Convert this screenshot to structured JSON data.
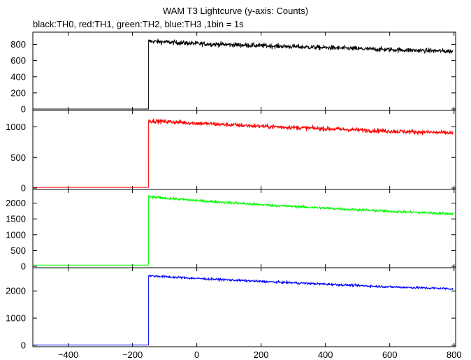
{
  "chart_data": {
    "type": "line",
    "title": "WAM T3 Lightcurve (y-axis: Counts)",
    "subtitle": "black:TH0, red:TH1, green:TH2, blue:TH3 ,1bin = 1s",
    "xlim": [
      -510,
      805
    ],
    "x_ticks": [
      -400,
      -200,
      0,
      200,
      400,
      600,
      800
    ],
    "x_tick_labels": [
      "−400",
      "−200",
      "0",
      "200",
      "400",
      "600",
      "800"
    ],
    "step_time": -150,
    "grid": false,
    "panels": [
      {
        "name": "TH0",
        "color": "#000000",
        "ylim": [
          0,
          900
        ],
        "y_ticks": [
          0,
          200,
          400,
          600,
          800
        ],
        "pre_level": 0,
        "x": [
          -150,
          0,
          200,
          400,
          600,
          800
        ],
        "y": [
          840,
          810,
          785,
          760,
          735,
          715
        ],
        "noise": 28
      },
      {
        "name": "TH1",
        "color": "#ff0000",
        "ylim": [
          0,
          1200
        ],
        "y_ticks": [
          0,
          500,
          1000
        ],
        "pre_level": 10,
        "x": [
          -150,
          0,
          200,
          400,
          600,
          800
        ],
        "y": [
          1100,
          1060,
          1010,
          970,
          930,
          900
        ],
        "noise": 35
      },
      {
        "name": "TH2",
        "color": "#00ff00",
        "ylim": [
          0,
          2300
        ],
        "y_ticks": [
          0,
          500,
          1000,
          1500,
          2000
        ],
        "pre_level": 40,
        "x": [
          -150,
          0,
          200,
          400,
          600,
          800
        ],
        "y": [
          2200,
          2080,
          1950,
          1840,
          1740,
          1660
        ],
        "noise": 45
      },
      {
        "name": "TH3",
        "color": "#0000ff",
        "ylim": [
          0,
          2700
        ],
        "y_ticks": [
          0,
          1000,
          2000
        ],
        "pre_level": 10,
        "x": [
          -150,
          0,
          200,
          400,
          600,
          800
        ],
        "y": [
          2560,
          2460,
          2350,
          2250,
          2150,
          2080
        ],
        "noise": 45
      }
    ]
  }
}
